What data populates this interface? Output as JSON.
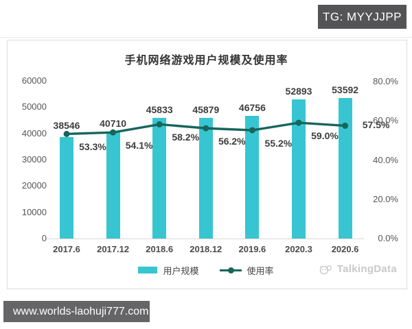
{
  "header": {
    "tg_badge": "TG: MYYJJPP"
  },
  "footer": {
    "url_badge": "www.worlds-laohuji777.com",
    "brand": "TalkingData"
  },
  "colors": {
    "bar": "#38c5d2",
    "line": "#17655b"
  },
  "chart_data": {
    "type": "bar",
    "combo": "bar+line",
    "title": "手机网络游戏用户规模及使用率",
    "categories": [
      "2017.6",
      "2017.12",
      "2018.6",
      "2018.12",
      "2019.6",
      "2020.3",
      "2020.6"
    ],
    "series": [
      {
        "name": "用户规模",
        "type": "bar",
        "axis": "left",
        "color": "#38c5d2",
        "values": [
          38546,
          40710,
          45833,
          45879,
          46756,
          52893,
          53592
        ],
        "labels": [
          "38546",
          "40710",
          "45833",
          "45879",
          "46756",
          "52893",
          "53592"
        ]
      },
      {
        "name": "使用率",
        "type": "line",
        "axis": "right",
        "color": "#17655b",
        "values": [
          53.3,
          54.1,
          58.2,
          56.2,
          55.2,
          59.0,
          57.5
        ],
        "labels": [
          "53.3%",
          "54.1%",
          "58.2%",
          "56.2%",
          "55.2%",
          "59.0%",
          "57.5%"
        ]
      }
    ],
    "left_axis": {
      "min": 0,
      "max": 60000,
      "ticks": [
        "60000",
        "50000",
        "40000",
        "30000",
        "20000",
        "10000",
        "0"
      ]
    },
    "right_axis": {
      "min": 0,
      "max": 80,
      "ticks": [
        "80.0%",
        "60.0%",
        "40.0%",
        "20.0%",
        "0.0%"
      ]
    },
    "legend": [
      "用户规模",
      "使用率"
    ],
    "legend_position": "bottom",
    "grid": false
  }
}
